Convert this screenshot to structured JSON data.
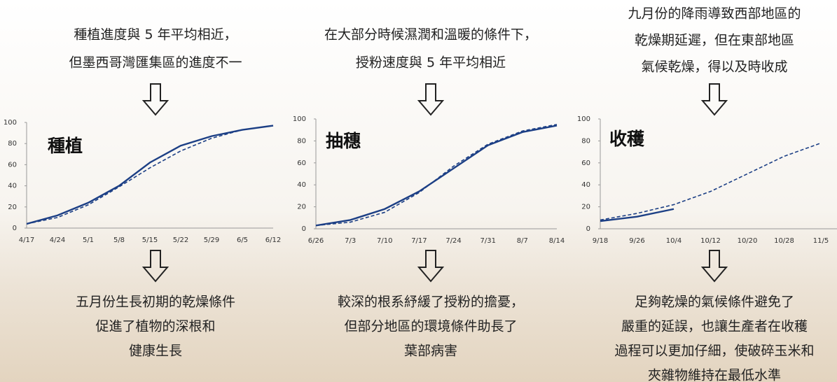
{
  "columns": [
    {
      "top_text": [
        "種植進度與 5 年平均相近，",
        "但墨西哥灣匯集區的進度不一"
      ],
      "bottom_text": [
        "五月份生長初期的乾燥條件",
        "促進了植物的深根和",
        "健康生長"
      ]
    },
    {
      "top_text": [
        "在大部分時候濕潤和溫暖的條件下，",
        "授粉速度與 5 年平均相近"
      ],
      "bottom_text": [
        "較深的根系紓緩了授粉的擔憂，",
        "但部分地區的環境條件助長了",
        "葉部病害"
      ]
    },
    {
      "top_text": [
        "九月份的降雨導致西部地區的",
        "乾燥期延遲，但在東部地區",
        "氣候乾燥，得以及時收成"
      ],
      "bottom_text": [
        "足夠乾燥的氣候條件避免了",
        "嚴重的延誤，也讓生產者在收穫",
        "過程可以更加仔細，使破碎玉米和",
        "夾雜物維持在最低水準"
      ]
    }
  ],
  "chart_data": [
    {
      "type": "line",
      "title": "種植",
      "categories": [
        "4/17",
        "4/24",
        "5/1",
        "5/8",
        "5/15",
        "5/22",
        "5/29",
        "6/5",
        "6/12"
      ],
      "series": [
        {
          "color": "#1c3f85",
          "line_style": "solid",
          "values": [
            4,
            12,
            24,
            40,
            62,
            78,
            87,
            93,
            97
          ]
        },
        {
          "color": "#1c3f85",
          "line_style": "dashed",
          "values": [
            4,
            10,
            22,
            39,
            57,
            73,
            85,
            93,
            97
          ]
        }
      ],
      "ylim": [
        0,
        100
      ],
      "yticks": [
        0,
        20,
        40,
        60,
        80,
        100
      ]
    },
    {
      "type": "line",
      "title": "抽穗",
      "categories": [
        "6/26",
        "7/3",
        "7/10",
        "7/17",
        "7/24",
        "7/31",
        "8/7",
        "8/14"
      ],
      "series": [
        {
          "color": "#1c3f85",
          "line_style": "solid",
          "values": [
            3,
            8,
            18,
            34,
            55,
            76,
            88,
            94
          ]
        },
        {
          "color": "#1c3f85",
          "line_style": "dashed",
          "values": [
            3,
            6,
            15,
            33,
            57,
            77,
            89,
            95
          ]
        }
      ],
      "ylim": [
        0,
        100
      ],
      "yticks": [
        0,
        20,
        40,
        60,
        80,
        100
      ]
    },
    {
      "type": "line",
      "title": "收穫",
      "categories": [
        "9/18",
        "9/26",
        "10/4",
        "10/12",
        "10/20",
        "10/28",
        "11/5"
      ],
      "series": [
        {
          "color": "#1c3f85",
          "line_style": "solid",
          "values": [
            7,
            11,
            18,
            null,
            null,
            null,
            null
          ]
        },
        {
          "color": "#1c3f85",
          "line_style": "dashed",
          "values": [
            8,
            14,
            22,
            34,
            50,
            66,
            78
          ]
        }
      ],
      "ylim": [
        0,
        100
      ],
      "yticks": [
        0,
        20,
        40,
        60,
        80,
        100
      ]
    }
  ]
}
